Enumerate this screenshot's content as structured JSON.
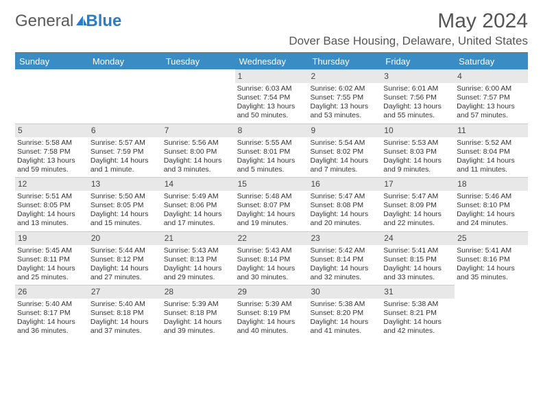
{
  "logo": {
    "text1": "General",
    "text2": "Blue"
  },
  "title": "May 2024",
  "subtitle": "Dover Base Housing, Delaware, United States",
  "colors": {
    "header_bg": "#3a8cc4",
    "header_text": "#ffffff",
    "daynum_bg": "#e8e8e8",
    "text": "#333333",
    "rule": "#777777"
  },
  "day_names": [
    "Sunday",
    "Monday",
    "Tuesday",
    "Wednesday",
    "Thursday",
    "Friday",
    "Saturday"
  ],
  "weeks": [
    [
      null,
      null,
      null,
      {
        "n": "1",
        "sr": "Sunrise: 6:03 AM",
        "ss": "Sunset: 7:54 PM",
        "dl": "Daylight: 13 hours and 50 minutes."
      },
      {
        "n": "2",
        "sr": "Sunrise: 6:02 AM",
        "ss": "Sunset: 7:55 PM",
        "dl": "Daylight: 13 hours and 53 minutes."
      },
      {
        "n": "3",
        "sr": "Sunrise: 6:01 AM",
        "ss": "Sunset: 7:56 PM",
        "dl": "Daylight: 13 hours and 55 minutes."
      },
      {
        "n": "4",
        "sr": "Sunrise: 6:00 AM",
        "ss": "Sunset: 7:57 PM",
        "dl": "Daylight: 13 hours and 57 minutes."
      }
    ],
    [
      {
        "n": "5",
        "sr": "Sunrise: 5:58 AM",
        "ss": "Sunset: 7:58 PM",
        "dl": "Daylight: 13 hours and 59 minutes."
      },
      {
        "n": "6",
        "sr": "Sunrise: 5:57 AM",
        "ss": "Sunset: 7:59 PM",
        "dl": "Daylight: 14 hours and 1 minute."
      },
      {
        "n": "7",
        "sr": "Sunrise: 5:56 AM",
        "ss": "Sunset: 8:00 PM",
        "dl": "Daylight: 14 hours and 3 minutes."
      },
      {
        "n": "8",
        "sr": "Sunrise: 5:55 AM",
        "ss": "Sunset: 8:01 PM",
        "dl": "Daylight: 14 hours and 5 minutes."
      },
      {
        "n": "9",
        "sr": "Sunrise: 5:54 AM",
        "ss": "Sunset: 8:02 PM",
        "dl": "Daylight: 14 hours and 7 minutes."
      },
      {
        "n": "10",
        "sr": "Sunrise: 5:53 AM",
        "ss": "Sunset: 8:03 PM",
        "dl": "Daylight: 14 hours and 9 minutes."
      },
      {
        "n": "11",
        "sr": "Sunrise: 5:52 AM",
        "ss": "Sunset: 8:04 PM",
        "dl": "Daylight: 14 hours and 11 minutes."
      }
    ],
    [
      {
        "n": "12",
        "sr": "Sunrise: 5:51 AM",
        "ss": "Sunset: 8:05 PM",
        "dl": "Daylight: 14 hours and 13 minutes."
      },
      {
        "n": "13",
        "sr": "Sunrise: 5:50 AM",
        "ss": "Sunset: 8:05 PM",
        "dl": "Daylight: 14 hours and 15 minutes."
      },
      {
        "n": "14",
        "sr": "Sunrise: 5:49 AM",
        "ss": "Sunset: 8:06 PM",
        "dl": "Daylight: 14 hours and 17 minutes."
      },
      {
        "n": "15",
        "sr": "Sunrise: 5:48 AM",
        "ss": "Sunset: 8:07 PM",
        "dl": "Daylight: 14 hours and 19 minutes."
      },
      {
        "n": "16",
        "sr": "Sunrise: 5:47 AM",
        "ss": "Sunset: 8:08 PM",
        "dl": "Daylight: 14 hours and 20 minutes."
      },
      {
        "n": "17",
        "sr": "Sunrise: 5:47 AM",
        "ss": "Sunset: 8:09 PM",
        "dl": "Daylight: 14 hours and 22 minutes."
      },
      {
        "n": "18",
        "sr": "Sunrise: 5:46 AM",
        "ss": "Sunset: 8:10 PM",
        "dl": "Daylight: 14 hours and 24 minutes."
      }
    ],
    [
      {
        "n": "19",
        "sr": "Sunrise: 5:45 AM",
        "ss": "Sunset: 8:11 PM",
        "dl": "Daylight: 14 hours and 25 minutes."
      },
      {
        "n": "20",
        "sr": "Sunrise: 5:44 AM",
        "ss": "Sunset: 8:12 PM",
        "dl": "Daylight: 14 hours and 27 minutes."
      },
      {
        "n": "21",
        "sr": "Sunrise: 5:43 AM",
        "ss": "Sunset: 8:13 PM",
        "dl": "Daylight: 14 hours and 29 minutes."
      },
      {
        "n": "22",
        "sr": "Sunrise: 5:43 AM",
        "ss": "Sunset: 8:14 PM",
        "dl": "Daylight: 14 hours and 30 minutes."
      },
      {
        "n": "23",
        "sr": "Sunrise: 5:42 AM",
        "ss": "Sunset: 8:14 PM",
        "dl": "Daylight: 14 hours and 32 minutes."
      },
      {
        "n": "24",
        "sr": "Sunrise: 5:41 AM",
        "ss": "Sunset: 8:15 PM",
        "dl": "Daylight: 14 hours and 33 minutes."
      },
      {
        "n": "25",
        "sr": "Sunrise: 5:41 AM",
        "ss": "Sunset: 8:16 PM",
        "dl": "Daylight: 14 hours and 35 minutes."
      }
    ],
    [
      {
        "n": "26",
        "sr": "Sunrise: 5:40 AM",
        "ss": "Sunset: 8:17 PM",
        "dl": "Daylight: 14 hours and 36 minutes."
      },
      {
        "n": "27",
        "sr": "Sunrise: 5:40 AM",
        "ss": "Sunset: 8:18 PM",
        "dl": "Daylight: 14 hours and 37 minutes."
      },
      {
        "n": "28",
        "sr": "Sunrise: 5:39 AM",
        "ss": "Sunset: 8:18 PM",
        "dl": "Daylight: 14 hours and 39 minutes."
      },
      {
        "n": "29",
        "sr": "Sunrise: 5:39 AM",
        "ss": "Sunset: 8:19 PM",
        "dl": "Daylight: 14 hours and 40 minutes."
      },
      {
        "n": "30",
        "sr": "Sunrise: 5:38 AM",
        "ss": "Sunset: 8:20 PM",
        "dl": "Daylight: 14 hours and 41 minutes."
      },
      {
        "n": "31",
        "sr": "Sunrise: 5:38 AM",
        "ss": "Sunset: 8:21 PM",
        "dl": "Daylight: 14 hours and 42 minutes."
      },
      null
    ]
  ]
}
